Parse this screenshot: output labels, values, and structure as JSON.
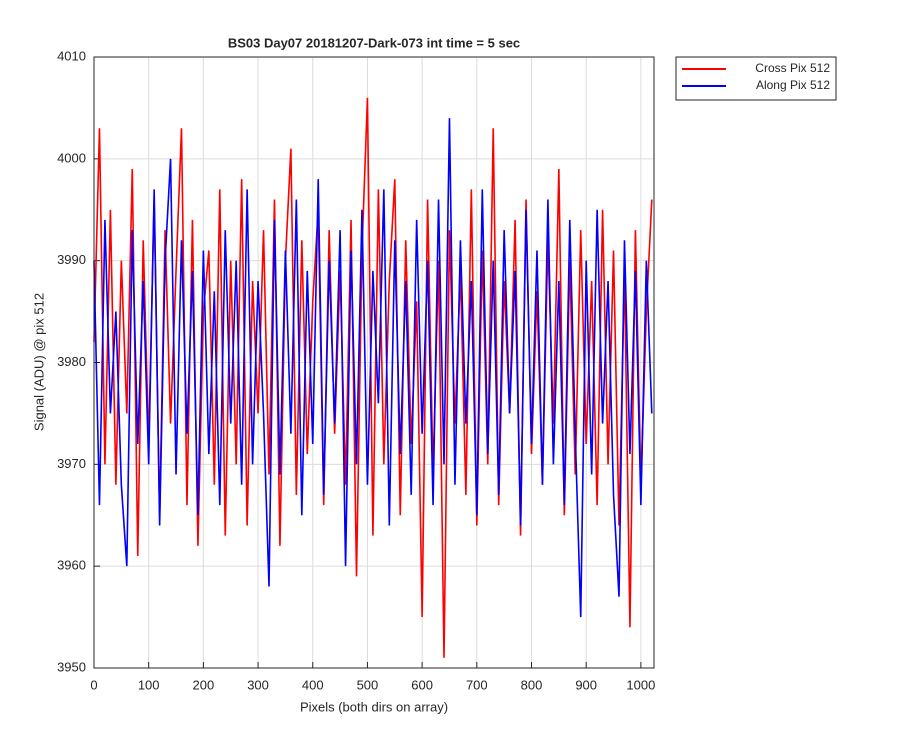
{
  "chart_data": {
    "type": "line",
    "title": "BS03 Day07 20181207-Dark-073 int time = 5 sec",
    "xlabel": "Pixels (both dirs on array)",
    "ylabel": "Signal (ADU) @ pix 512",
    "x": [
      0,
      10,
      20,
      30,
      40,
      50,
      60,
      70,
      80,
      90,
      100,
      110,
      120,
      130,
      140,
      150,
      160,
      170,
      180,
      190,
      200,
      210,
      220,
      230,
      240,
      250,
      260,
      270,
      280,
      290,
      300,
      310,
      320,
      330,
      340,
      350,
      360,
      370,
      380,
      390,
      400,
      410,
      420,
      430,
      440,
      450,
      460,
      470,
      480,
      490,
      500,
      510,
      520,
      530,
      540,
      550,
      560,
      570,
      580,
      590,
      600,
      610,
      620,
      630,
      640,
      650,
      660,
      670,
      680,
      690,
      700,
      710,
      720,
      730,
      740,
      750,
      760,
      770,
      780,
      790,
      800,
      810,
      820,
      830,
      840,
      850,
      860,
      870,
      880,
      890,
      900,
      910,
      920,
      930,
      940,
      950,
      960,
      970,
      980,
      990,
      1000,
      1010,
      1020
    ],
    "series": [
      {
        "name": "Cross Pix 512",
        "color": "#ff0000",
        "values": [
          3982,
          4003,
          3970,
          3995,
          3968,
          3990,
          3975,
          3999,
          3961,
          3992,
          3972,
          3996,
          3965,
          3993,
          3974,
          3989,
          4003,
          3966,
          3994,
          3962,
          3985,
          3991,
          3968,
          3997,
          3963,
          3990,
          3970,
          3998,
          3964,
          3988,
          3975,
          3993,
          3969,
          3996,
          3962,
          3990,
          4001,
          3967,
          3992,
          3971,
          3986,
          3995,
          3966,
          3993,
          3973,
          3989,
          3968,
          3994,
          3959,
          3991,
          4006,
          3963,
          3997,
          3970,
          3988,
          3998,
          3965,
          3992,
          3972,
          3986,
          3955,
          3996,
          3969,
          3990,
          3951,
          3993,
          3974,
          3989,
          3967,
          3997,
          3964,
          3991,
          3970,
          4003,
          3966,
          3988,
          3975,
          3994,
          3963,
          3996,
          3971,
          3987,
          3968,
          3992,
          3974,
          3999,
          3965,
          3990,
          3969,
          3993,
          3972,
          3988,
          3966,
          3995,
          3970,
          3991,
          3964,
          3989,
          3954,
          3993,
          3968,
          3985,
          3996
        ]
      },
      {
        "name": "Along Pix 512",
        "color": "#0000ff",
        "values": [
          3990,
          3966,
          3994,
          3975,
          3985,
          3968,
          3960,
          3993,
          3972,
          3988,
          3970,
          3997,
          3964,
          3990,
          4000,
          3969,
          3992,
          3973,
          3989,
          3965,
          3991,
          3971,
          3987,
          3966,
          3993,
          3974,
          3990,
          3968,
          3997,
          3970,
          3988,
          3975,
          3958,
          3994,
          3969,
          3991,
          3973,
          3996,
          3965,
          3989,
          3972,
          3998,
          3967,
          3990,
          3974,
          3993,
          3960,
          3991,
          3970,
          3995,
          3968,
          3989,
          3976,
          3997,
          3964,
          3992,
          3971,
          3988,
          3967,
          3994,
          3973,
          3990,
          3966,
          3996,
          3970,
          4004,
          3968,
          3992,
          3974,
          3988,
          3965,
          3997,
          3971,
          3990,
          3967,
          3993,
          3975,
          3989,
          3964,
          3995,
          3972,
          3991,
          3968,
          3996,
          3970,
          3988,
          3966,
          3994,
          3973,
          3955,
          3990,
          3969,
          3995,
          3974,
          3988,
          3967,
          3957,
          3992,
          3971,
          3989,
          3966,
          3990,
          3975
        ]
      }
    ],
    "xlim": [
      0,
      1024
    ],
    "xticks": [
      0,
      100,
      200,
      300,
      400,
      500,
      600,
      700,
      800,
      900,
      1000
    ],
    "ylim": [
      3950,
      4010
    ],
    "yticks": [
      3950,
      3960,
      3970,
      3980,
      3990,
      4000,
      4010
    ],
    "grid": true,
    "legend": "northeastoutside"
  }
}
